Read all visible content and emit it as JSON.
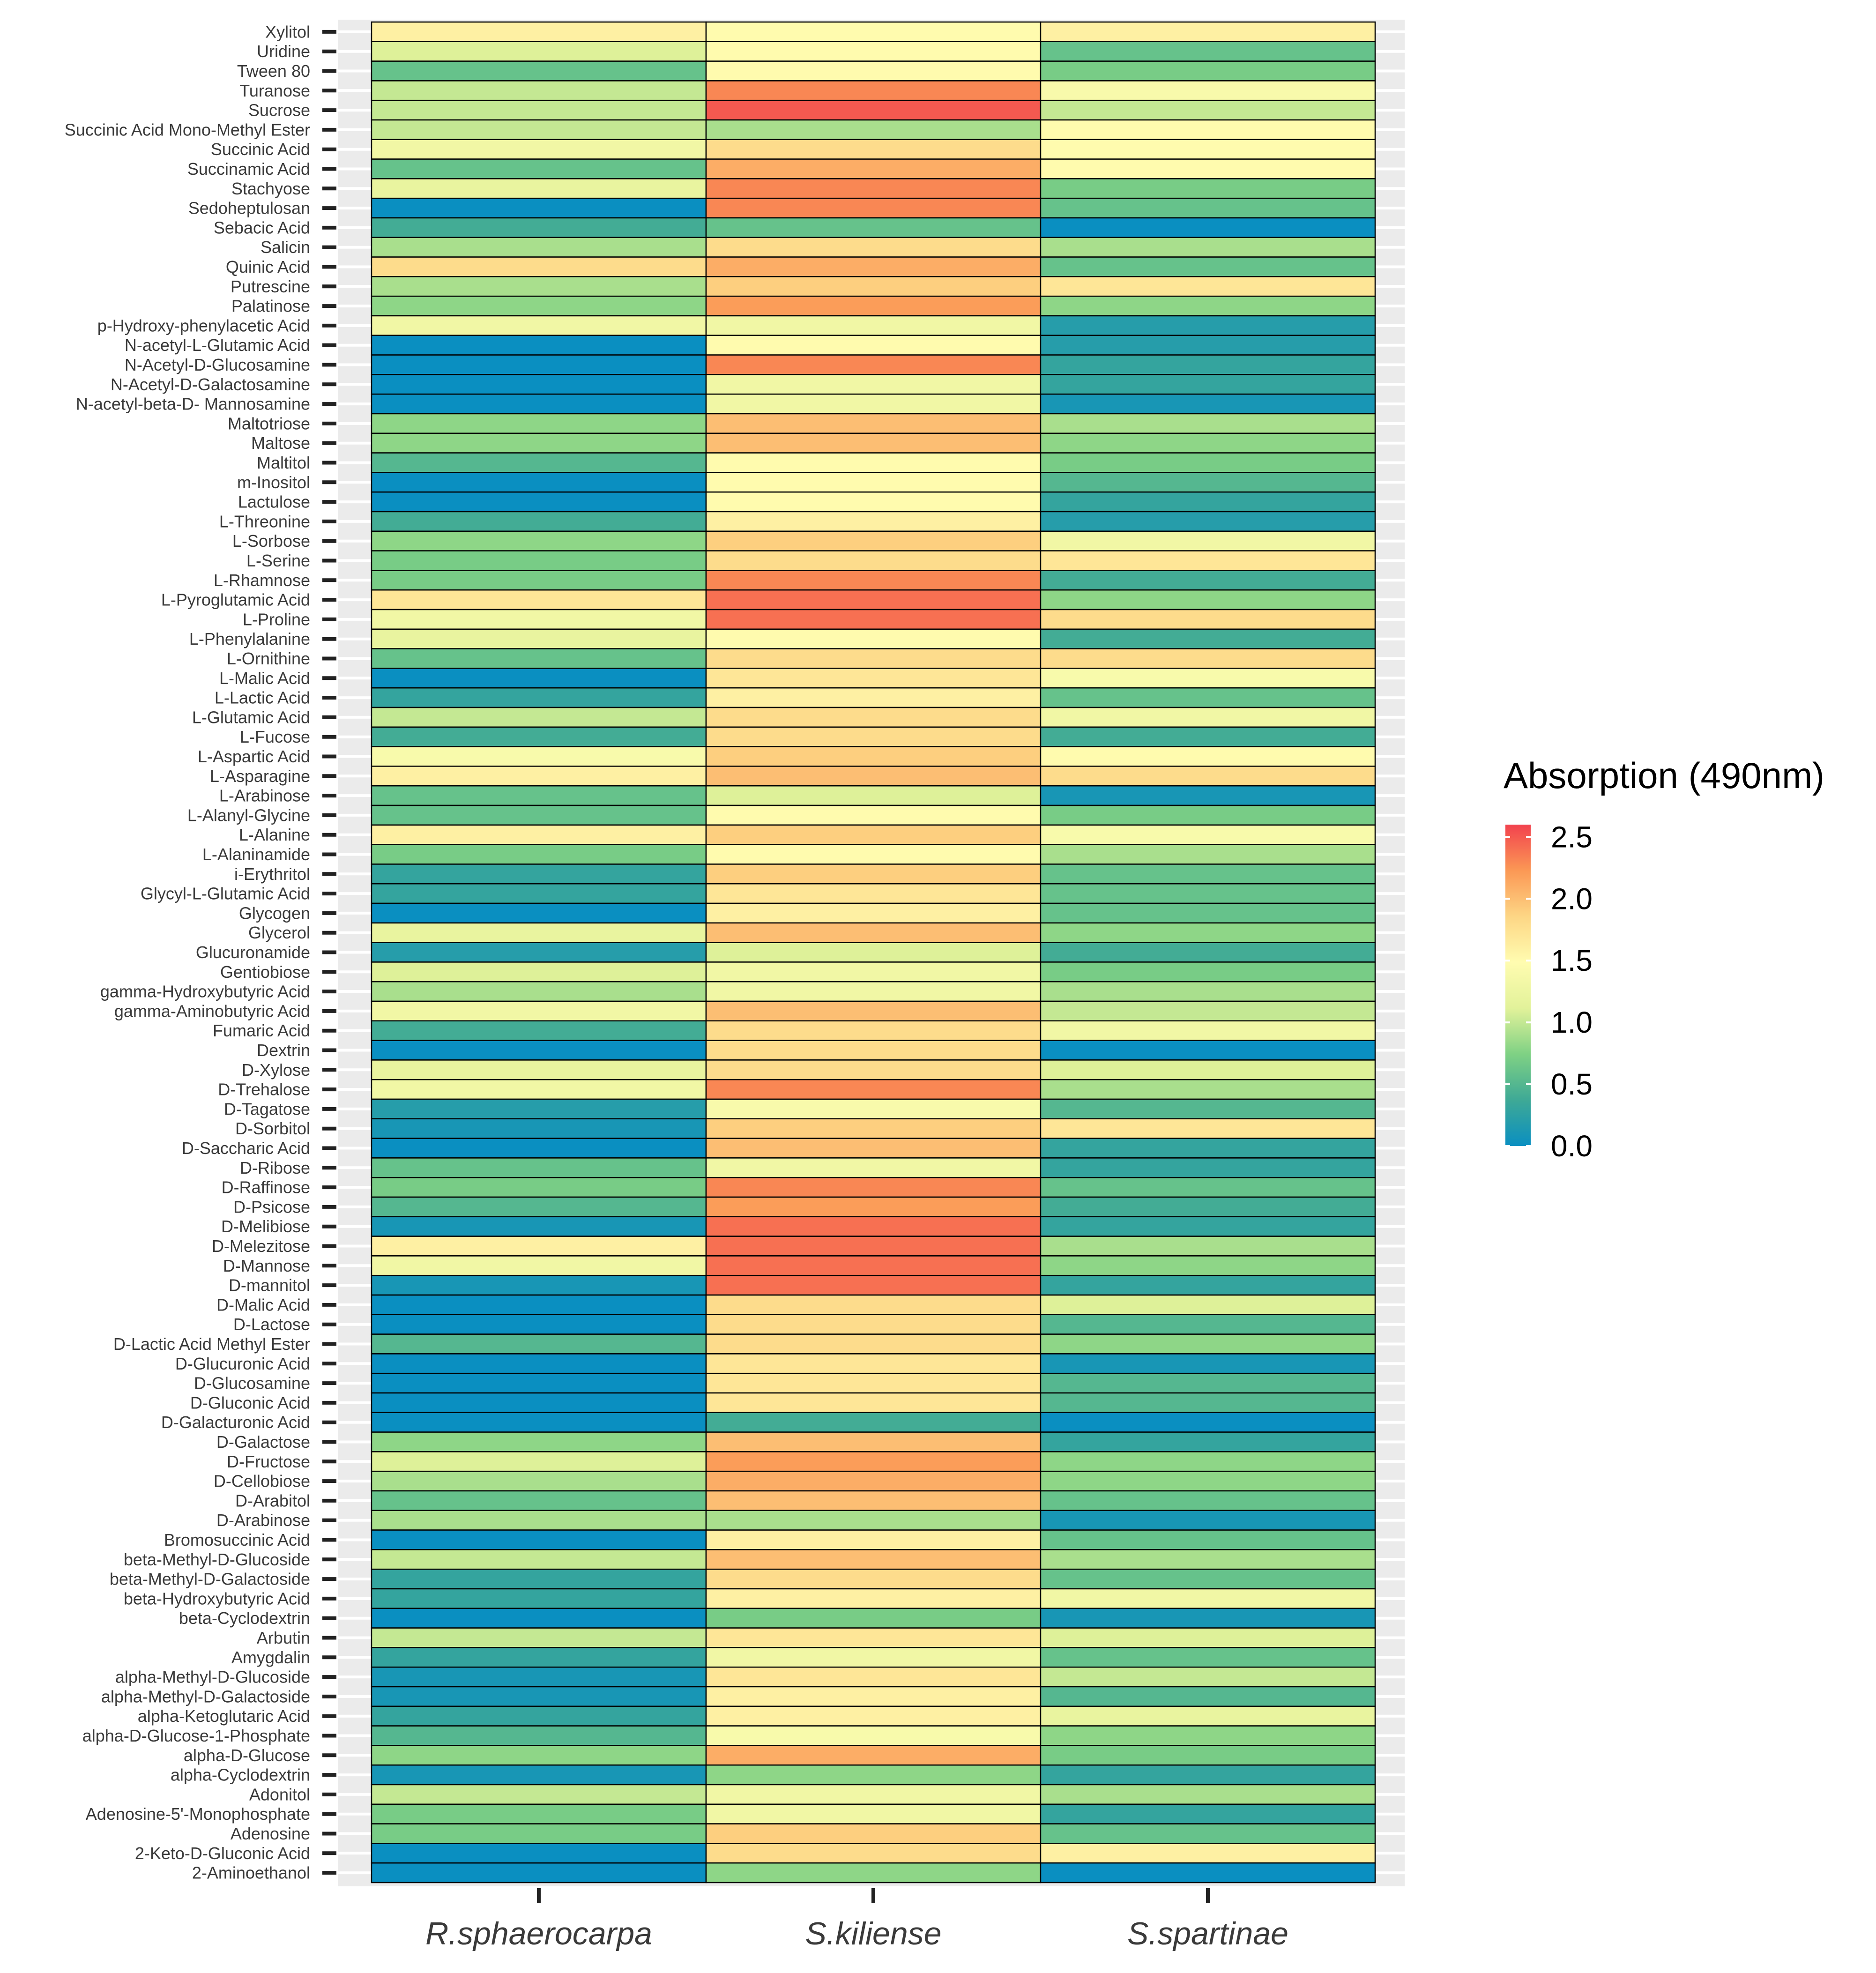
{
  "chart_data": {
    "type": "heatmap",
    "title": "",
    "xlabel": "",
    "ylabel": "",
    "columns": [
      "R.sphaerocarpa",
      "S.kiliense",
      "S.spartinae"
    ],
    "rows": [
      "Xylitol",
      "Uridine",
      "Tween 80",
      "Turanose",
      "Sucrose",
      "Succinic Acid Mono-Methyl Ester",
      "Succinic Acid",
      "Succinamic Acid",
      "Stachyose",
      "Sedoheptulosan",
      "Sebacic Acid",
      "Salicin",
      "Quinic Acid",
      "Putrescine",
      "Palatinose",
      "p-Hydroxy-phenylacetic Acid",
      "N-acetyl-L-Glutamic Acid",
      "N-Acetyl-D-Glucosamine",
      "N-Acetyl-D-Galactosamine",
      "N-acetyl-beta-D- Mannosamine",
      "Maltotriose",
      "Maltose",
      "Maltitol",
      "m-Inositol",
      "Lactulose",
      "L-Threonine",
      "L-Sorbose",
      "L-Serine",
      "L-Rhamnose",
      "L-Pyroglutamic Acid",
      "L-Proline",
      "L-Phenylalanine",
      "L-Ornithine",
      "L-Malic Acid",
      "L-Lactic Acid",
      "L-Glutamic Acid",
      "L-Fucose",
      "L-Aspartic Acid",
      "L-Asparagine",
      "L-Arabinose",
      "L-Alanyl-Glycine",
      "L-Alanine",
      "L-Alaninamide",
      "i-Erythritol",
      "Glycyl-L-Glutamic Acid",
      "Glycogen",
      "Glycerol",
      "Glucuronamide",
      "Gentiobiose",
      "gamma-Hydroxybutyric Acid",
      "gamma-Aminobutyric Acid",
      "Fumaric Acid",
      "Dextrin",
      "D-Xylose",
      "D-Trehalose",
      "D-Tagatose",
      "D-Sorbitol",
      "D-Saccharic Acid",
      "D-Ribose",
      "D-Raffinose",
      "D-Psicose",
      "D-Melibiose",
      "D-Melezitose",
      "D-Mannose",
      "D-mannitol",
      "D-Malic Acid",
      "D-Lactose",
      "D-Lactic Acid Methyl Ester",
      "D-Glucuronic Acid",
      "D-Glucosamine",
      "D-Gluconic Acid",
      "D-Galacturonic Acid",
      "D-Galactose",
      "D-Fructose",
      "D-Cellobiose",
      "D-Arabitol",
      "D-Arabinose",
      "Bromosuccinic Acid",
      "beta-Methyl-D-Glucoside",
      "beta-Methyl-D-Galactoside",
      "beta-Hydroxybutyric Acid",
      "beta-Cyclodextrin",
      "Arbutin",
      "Amygdalin",
      "alpha-Methyl-D-Glucoside",
      "alpha-Methyl-D-Galactoside",
      "alpha-Ketoglutaric Acid",
      "alpha-D-Glucose-1-Phosphate",
      "alpha-D-Glucose",
      "alpha-Cyclodextrin",
      "Adonitol",
      "Adenosine-5'-Monophosphate",
      "Adenosine",
      "2-Keto-D-Gluconic Acid",
      "2-Aminoethanol"
    ],
    "values": [
      [
        1.6,
        1.5,
        1.6
      ],
      [
        1.1,
        1.5,
        0.6
      ],
      [
        0.6,
        1.5,
        0.7
      ],
      [
        1.0,
        2.3,
        1.4
      ],
      [
        1.0,
        2.5,
        1.0
      ],
      [
        1.0,
        0.9,
        1.5
      ],
      [
        1.3,
        1.8,
        1.5
      ],
      [
        0.6,
        2.1,
        1.5
      ],
      [
        1.2,
        2.3,
        0.7
      ],
      [
        0.0,
        2.3,
        0.6
      ],
      [
        0.4,
        0.6,
        0.0
      ],
      [
        0.9,
        1.8,
        0.9
      ],
      [
        1.8,
        2.1,
        0.6
      ],
      [
        0.9,
        1.9,
        1.7
      ],
      [
        0.8,
        2.2,
        0.8
      ],
      [
        1.3,
        1.3,
        0.2
      ],
      [
        0.0,
        1.5,
        0.2
      ],
      [
        0.0,
        2.3,
        0.3
      ],
      [
        0.0,
        1.3,
        0.3
      ],
      [
        0.0,
        1.3,
        0.1
      ],
      [
        0.8,
        2.0,
        0.9
      ],
      [
        0.8,
        2.0,
        0.8
      ],
      [
        0.5,
        1.5,
        0.7
      ],
      [
        0.0,
        1.5,
        0.5
      ],
      [
        0.0,
        1.5,
        0.3
      ],
      [
        0.4,
        1.6,
        0.2
      ],
      [
        0.8,
        1.9,
        1.3
      ],
      [
        0.7,
        1.8,
        1.7
      ],
      [
        0.7,
        2.3,
        0.4
      ],
      [
        1.7,
        2.4,
        0.8
      ],
      [
        1.3,
        2.4,
        1.8
      ],
      [
        1.2,
        1.5,
        0.4
      ],
      [
        0.6,
        1.8,
        1.8
      ],
      [
        0.0,
        1.7,
        1.4
      ],
      [
        0.3,
        1.6,
        0.6
      ],
      [
        1.0,
        1.8,
        1.3
      ],
      [
        0.4,
        1.8,
        0.4
      ],
      [
        1.4,
        1.9,
        1.5
      ],
      [
        1.6,
        2.0,
        1.8
      ],
      [
        0.6,
        1.1,
        0.1
      ],
      [
        0.6,
        1.5,
        0.7
      ],
      [
        1.6,
        1.9,
        1.4
      ],
      [
        0.7,
        1.5,
        0.9
      ],
      [
        0.3,
        1.9,
        0.6
      ],
      [
        0.3,
        1.7,
        0.6
      ],
      [
        0.0,
        1.6,
        0.6
      ],
      [
        1.2,
        2.0,
        0.8
      ],
      [
        0.2,
        1.1,
        0.4
      ],
      [
        1.1,
        1.3,
        0.7
      ],
      [
        0.9,
        1.3,
        0.9
      ],
      [
        1.3,
        2.0,
        1.0
      ],
      [
        0.4,
        1.8,
        1.3
      ],
      [
        0.0,
        1.8,
        0.0
      ],
      [
        1.2,
        1.8,
        1.1
      ],
      [
        1.3,
        2.3,
        0.9
      ],
      [
        0.2,
        1.4,
        0.5
      ],
      [
        0.1,
        1.9,
        1.7
      ],
      [
        0.0,
        2.0,
        0.3
      ],
      [
        0.6,
        1.3,
        0.3
      ],
      [
        0.7,
        2.3,
        0.6
      ],
      [
        0.5,
        2.2,
        0.4
      ],
      [
        0.1,
        2.4,
        0.3
      ],
      [
        1.6,
        2.4,
        0.9
      ],
      [
        1.3,
        2.4,
        0.8
      ],
      [
        0.1,
        2.4,
        0.3
      ],
      [
        0.0,
        1.8,
        1.1
      ],
      [
        0.0,
        1.8,
        0.5
      ],
      [
        0.5,
        1.8,
        0.8
      ],
      [
        0.0,
        1.7,
        0.1
      ],
      [
        0.0,
        1.7,
        0.5
      ],
      [
        0.0,
        1.7,
        0.5
      ],
      [
        0.0,
        0.4,
        0.0
      ],
      [
        0.8,
        2.0,
        0.3
      ],
      [
        1.1,
        2.2,
        0.8
      ],
      [
        0.9,
        2.1,
        0.8
      ],
      [
        0.6,
        2.0,
        0.6
      ],
      [
        0.9,
        0.9,
        0.1
      ],
      [
        0.0,
        1.6,
        0.6
      ],
      [
        1.0,
        2.0,
        0.9
      ],
      [
        0.3,
        1.8,
        0.6
      ],
      [
        0.3,
        1.6,
        1.3
      ],
      [
        0.0,
        0.7,
        0.1
      ],
      [
        1.0,
        1.7,
        1.1
      ],
      [
        0.3,
        1.3,
        0.6
      ],
      [
        0.1,
        1.7,
        1.0
      ],
      [
        0.1,
        1.6,
        0.5
      ],
      [
        0.3,
        1.6,
        1.2
      ],
      [
        0.5,
        1.4,
        0.8
      ],
      [
        0.8,
        2.1,
        0.7
      ],
      [
        0.1,
        0.8,
        0.3
      ],
      [
        1.0,
        1.3,
        0.9
      ],
      [
        0.7,
        1.3,
        0.3
      ],
      [
        0.7,
        1.9,
        0.6
      ],
      [
        0.0,
        1.8,
        1.6
      ],
      [
        0.0,
        0.8,
        0.0
      ]
    ],
    "legend": {
      "title": "Absorption (490nm)",
      "position": "right",
      "range": [
        0,
        2.6
      ],
      "ticks": [
        0.0,
        0.5,
        1.0,
        1.5,
        2.0,
        2.5
      ],
      "tick_labels": [
        "0.0",
        "0.5",
        "1.0",
        "1.5",
        "2.0",
        "2.5"
      ],
      "palette": [
        "#0a8fc1",
        "#3ea996",
        "#7fd184",
        "#e2f29a",
        "#fffcb0",
        "#fdd685",
        "#fb9855",
        "#f2424e"
      ]
    },
    "grid": true
  }
}
